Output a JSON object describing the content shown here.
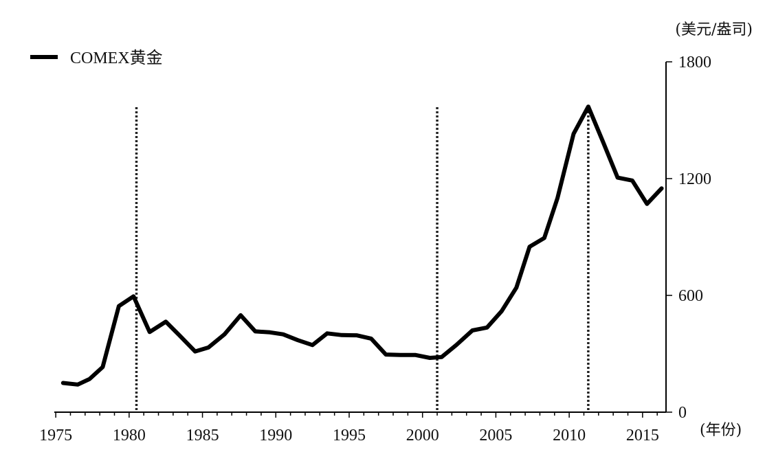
{
  "chart_data": {
    "type": "line",
    "y_unit_label": "(美元/盎司)",
    "x_unit_label": "(年份)",
    "ylim": [
      0,
      1800
    ],
    "y_ticks": [
      0,
      600,
      1200,
      1800
    ],
    "x_ticks": [
      1975,
      1980,
      1985,
      1990,
      1995,
      2000,
      2005,
      2010,
      2015
    ],
    "xlim": [
      1974.9,
      2016.6
    ],
    "y_axis_side": "right",
    "grid": false,
    "legend_position": "top-left",
    "vertical_markers": [
      1980.5,
      2001.0,
      2011.3
    ],
    "series": [
      {
        "name": "COMEX黄金",
        "color": "#000000",
        "x": [
          1975.5,
          1976.5,
          1977.3,
          1978.2,
          1979.3,
          1980.3,
          1981.4,
          1982.5,
          1983.4,
          1984.5,
          1985.4,
          1986.5,
          1987.6,
          1988.6,
          1989.6,
          1990.5,
          1991.5,
          1992.5,
          1993.5,
          1994.5,
          1995.5,
          1996.5,
          1997.5,
          1998.5,
          1999.5,
          2000.5,
          2001.3,
          2002.3,
          2003.4,
          2004.4,
          2005.4,
          2006.4,
          2007.3,
          2008.3,
          2009.2,
          2010.3,
          2011.3,
          2012.3,
          2013.3,
          2014.3,
          2015.3,
          2016.3
        ],
        "values": [
          150,
          142,
          170,
          232,
          545,
          595,
          412,
          465,
          397,
          312,
          332,
          400,
          498,
          415,
          410,
          400,
          370,
          345,
          405,
          396,
          395,
          378,
          296,
          294,
          294,
          279,
          283,
          345,
          420,
          435,
          520,
          640,
          850,
          895,
          1100,
          1430,
          1570,
          1390,
          1205,
          1190,
          1070,
          1150
        ]
      }
    ]
  }
}
